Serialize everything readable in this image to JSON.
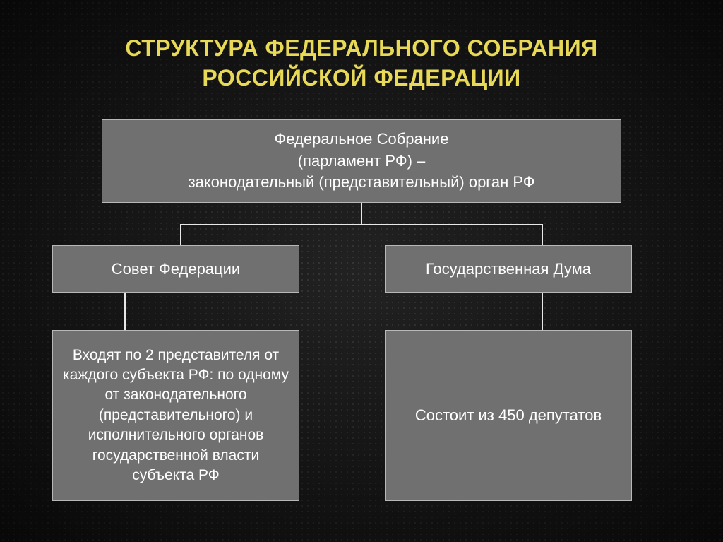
{
  "diagram": {
    "type": "tree",
    "title_line1": "СТРУКТУРА ФЕДЕРАЛЬНОГО СОБРАНИЯ",
    "title_line2": "РОССИЙСКОЙ ФЕДЕРАЦИИ",
    "title_color": "#e8d956",
    "title_fontsize": 32,
    "background_color": "#1a1a1a",
    "dot_color": "#3a3a3a",
    "connector_color": "#e8e8e8",
    "nodes": {
      "root": {
        "text": "Федеральное Собрание\n(парламент РФ) –\nзаконодательный (представительный) орган РФ",
        "bg_color": "#707070",
        "border_color": "#b8b8b8",
        "text_color": "#ffffff",
        "fontsize": 22
      },
      "left_mid": {
        "text": "Совет Федерации",
        "bg_color": "#707070",
        "border_color": "#b8b8b8",
        "text_color": "#ffffff",
        "fontsize": 22
      },
      "right_mid": {
        "text": "Государственная Дума",
        "bg_color": "#707070",
        "border_color": "#b8b8b8",
        "text_color": "#ffffff",
        "fontsize": 22
      },
      "left_bot": {
        "text": "Входят по 2 представителя от каждого субъекта РФ: по одному от законодательного (представительного) и исполнительного органов государственной власти субъекта РФ",
        "bg_color": "#707070",
        "border_color": "#b8b8b8",
        "text_color": "#ffffff",
        "fontsize": 21
      },
      "right_bot": {
        "text": "Состоит из 450 депутатов",
        "bg_color": "#707070",
        "border_color": "#b8b8b8",
        "text_color": "#ffffff",
        "fontsize": 22
      }
    },
    "edges": [
      {
        "from": "root",
        "to": "left_mid"
      },
      {
        "from": "root",
        "to": "right_mid"
      },
      {
        "from": "left_mid",
        "to": "left_bot"
      },
      {
        "from": "right_mid",
        "to": "right_bot"
      }
    ]
  }
}
